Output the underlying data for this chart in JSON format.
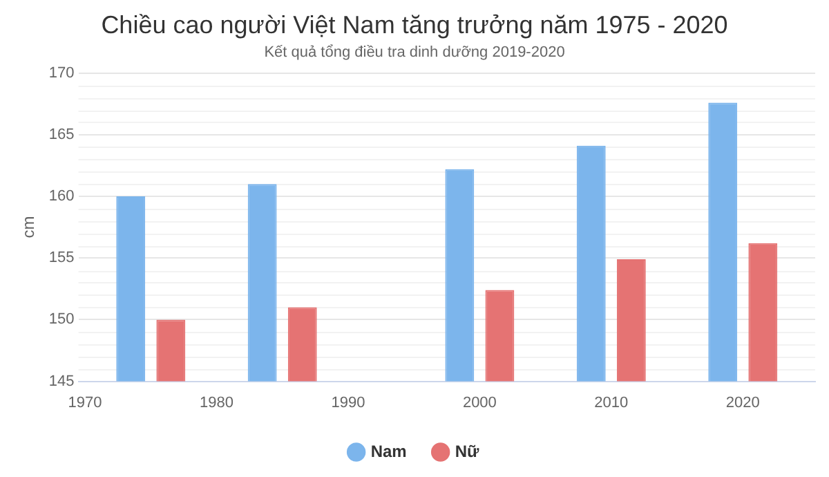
{
  "chart_data": {
    "type": "bar",
    "title": "Chiều cao người Việt Nam tăng trưởng năm 1975 - 2020",
    "subtitle": "Kết quả tổng điều tra dinh dưỡng 2019-2020",
    "ylabel": "cm",
    "x": [
      1975,
      1985,
      2000,
      2010,
      2020
    ],
    "series": [
      {
        "name": "Nam",
        "color": "#7cb5ec",
        "values": [
          160,
          161,
          162.2,
          164.1,
          167.6
        ]
      },
      {
        "name": "Nữ",
        "color": "#e57373",
        "values": [
          150,
          151,
          152.4,
          154.9,
          156.2
        ]
      }
    ],
    "xlim": [
      1969.5,
      2025.5
    ],
    "xticks": [
      1970,
      1980,
      1990,
      2000,
      2010,
      2020
    ],
    "ylim": [
      145,
      170
    ],
    "yticks": [
      145,
      150,
      155,
      160,
      165,
      170
    ],
    "grid": "y",
    "legend": "bottom"
  }
}
